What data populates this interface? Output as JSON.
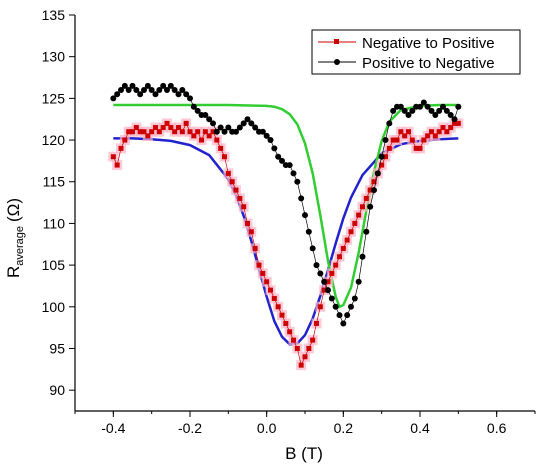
{
  "chart_data": {
    "type": "scatter",
    "xlabel": "B (T)",
    "ylabel": {
      "main": "R",
      "sub": "average",
      "unit": "(Ω)"
    },
    "xlim": [
      -0.5,
      0.7
    ],
    "ylim": [
      87.5,
      135
    ],
    "xticks": [
      "-0.4",
      "-0.2",
      "0.0",
      "0.2",
      "0.4",
      "0.6"
    ],
    "yticks": [
      "90",
      "95",
      "100",
      "105",
      "110",
      "115",
      "120",
      "125",
      "130",
      "135"
    ],
    "legend_position": "top-right",
    "series": [
      {
        "name": "Negative to Positive",
        "color": "#cc0000",
        "halo": "#ffb3c6",
        "marker": "square",
        "x": [
          -0.4,
          -0.39,
          -0.38,
          -0.37,
          -0.36,
          -0.35,
          -0.34,
          -0.33,
          -0.32,
          -0.31,
          -0.3,
          -0.29,
          -0.28,
          -0.27,
          -0.26,
          -0.25,
          -0.24,
          -0.23,
          -0.22,
          -0.21,
          -0.2,
          -0.19,
          -0.18,
          -0.17,
          -0.16,
          -0.15,
          -0.14,
          -0.13,
          -0.12,
          -0.11,
          -0.1,
          -0.09,
          -0.08,
          -0.07,
          -0.06,
          -0.05,
          -0.04,
          -0.03,
          -0.02,
          -0.01,
          0.0,
          0.01,
          0.02,
          0.03,
          0.04,
          0.05,
          0.06,
          0.07,
          0.08,
          0.09,
          0.1,
          0.11,
          0.12,
          0.13,
          0.14,
          0.15,
          0.16,
          0.17,
          0.18,
          0.19,
          0.2,
          0.21,
          0.22,
          0.23,
          0.24,
          0.25,
          0.26,
          0.27,
          0.28,
          0.29,
          0.3,
          0.31,
          0.32,
          0.33,
          0.34,
          0.35,
          0.36,
          0.37,
          0.38,
          0.39,
          0.4,
          0.41,
          0.42,
          0.43,
          0.44,
          0.45,
          0.46,
          0.47,
          0.48,
          0.49,
          0.5
        ],
        "y": [
          118,
          117,
          119,
          120,
          121,
          121,
          121.5,
          121,
          121,
          120.5,
          121,
          121.5,
          121,
          121.5,
          122,
          121.5,
          121,
          121.5,
          121,
          122,
          121,
          120.5,
          121,
          120,
          121,
          120.5,
          121,
          120,
          119,
          118,
          116,
          115,
          114,
          113,
          112,
          110,
          109,
          107,
          105,
          104,
          103,
          102,
          101,
          100,
          99,
          98,
          97,
          96,
          95,
          93,
          94,
          95,
          96,
          98,
          100,
          102,
          103,
          104,
          105,
          106,
          107,
          108,
          109,
          110,
          111,
          112,
          113,
          114,
          115,
          116,
          117,
          118,
          119,
          120,
          120,
          121,
          120.5,
          121,
          120,
          119,
          119,
          120,
          120.5,
          121,
          120.5,
          121,
          121.5,
          121,
          121.5,
          122,
          122
        ]
      },
      {
        "name": "Positive to Negative",
        "color": "#000000",
        "marker": "circle",
        "x": [
          -0.4,
          -0.39,
          -0.38,
          -0.37,
          -0.36,
          -0.35,
          -0.34,
          -0.33,
          -0.32,
          -0.31,
          -0.3,
          -0.29,
          -0.28,
          -0.27,
          -0.26,
          -0.25,
          -0.24,
          -0.23,
          -0.22,
          -0.21,
          -0.2,
          -0.19,
          -0.18,
          -0.17,
          -0.16,
          -0.15,
          -0.14,
          -0.13,
          -0.12,
          -0.11,
          -0.1,
          -0.09,
          -0.08,
          -0.07,
          -0.06,
          -0.05,
          -0.04,
          -0.03,
          -0.02,
          -0.01,
          0.0,
          0.01,
          0.02,
          0.03,
          0.04,
          0.05,
          0.06,
          0.07,
          0.08,
          0.09,
          0.1,
          0.11,
          0.12,
          0.13,
          0.14,
          0.15,
          0.16,
          0.17,
          0.18,
          0.19,
          0.2,
          0.21,
          0.22,
          0.23,
          0.24,
          0.25,
          0.26,
          0.27,
          0.28,
          0.29,
          0.3,
          0.31,
          0.32,
          0.33,
          0.34,
          0.35,
          0.36,
          0.37,
          0.38,
          0.39,
          0.4,
          0.41,
          0.42,
          0.43,
          0.44,
          0.45,
          0.46,
          0.47,
          0.48,
          0.49,
          0.5
        ],
        "y": [
          125,
          125.5,
          126,
          126.5,
          126,
          126.5,
          126,
          125.5,
          126,
          126.5,
          126,
          125.5,
          126,
          126.5,
          126,
          126.5,
          126,
          125.5,
          126,
          125.5,
          125,
          124,
          123.5,
          123,
          123,
          122.5,
          122,
          121,
          121.5,
          121,
          121.5,
          121,
          121,
          121.5,
          122,
          122.5,
          122,
          121.5,
          121,
          121,
          120.5,
          120,
          119,
          118,
          117.5,
          117,
          117,
          116,
          115,
          113,
          111,
          109,
          107,
          105,
          104,
          103,
          102,
          101,
          100,
          99,
          98,
          99,
          100,
          101,
          103,
          106,
          109,
          112,
          114,
          116,
          118,
          120,
          122,
          123.5,
          124,
          124,
          123.5,
          123,
          123.5,
          124,
          124,
          124.5,
          124,
          123.5,
          123,
          123.5,
          124,
          123.5,
          123,
          122.5,
          124
        ]
      }
    ],
    "fits": [
      {
        "color": "#2222cc",
        "x": [
          -0.4,
          -0.35,
          -0.3,
          -0.25,
          -0.2,
          -0.15,
          -0.1,
          -0.08,
          -0.06,
          -0.04,
          -0.02,
          0.0,
          0.02,
          0.04,
          0.06,
          0.08,
          0.1,
          0.12,
          0.14,
          0.16,
          0.18,
          0.2,
          0.22,
          0.25,
          0.3,
          0.35,
          0.4,
          0.45,
          0.5
        ],
        "y": [
          120.2,
          120.2,
          120.1,
          119.9,
          119.4,
          118.2,
          115.3,
          113.4,
          110.9,
          107.9,
          104.5,
          101.2,
          98.3,
          96.4,
          95.5,
          95.6,
          96.6,
          98.6,
          101.3,
          104.4,
          107.6,
          110.6,
          113.1,
          115.8,
          118.4,
          119.5,
          119.9,
          120.1,
          120.2
        ]
      },
      {
        "color": "#33cc33",
        "x": [
          -0.4,
          -0.3,
          -0.2,
          -0.1,
          0.0,
          0.02,
          0.04,
          0.06,
          0.08,
          0.1,
          0.12,
          0.14,
          0.16,
          0.18,
          0.19,
          0.2,
          0.22,
          0.24,
          0.26,
          0.28,
          0.3,
          0.32,
          0.35,
          0.4,
          0.45,
          0.5
        ],
        "y": [
          124.2,
          124.2,
          124.2,
          124.2,
          124.1,
          124.0,
          123.7,
          123.1,
          121.9,
          119.6,
          116.0,
          111.0,
          105.5,
          101.2,
          100.0,
          100.2,
          102.3,
          106.5,
          111.5,
          116.2,
          119.9,
          122.2,
          123.6,
          124.1,
          124.2,
          124.2
        ]
      }
    ]
  }
}
